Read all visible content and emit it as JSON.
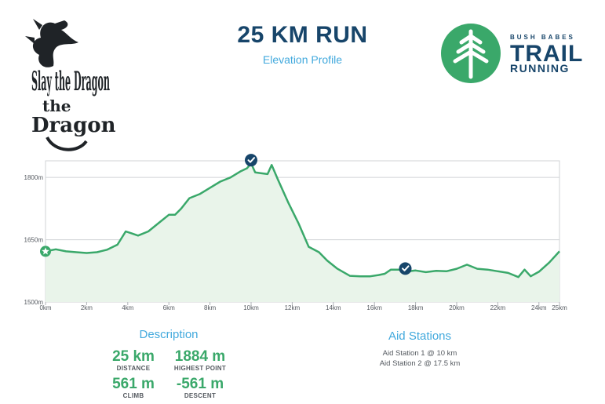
{
  "title": "25 KM RUN",
  "subtitle": "Elevation Profile",
  "logo_left": {
    "text": "Slay the Dragon",
    "icon": "dragon-icon"
  },
  "logo_right": {
    "small": "BUSH BABES",
    "big": "TRAIL",
    "bottom": "RUNNING",
    "icon": "pine-tree-icon"
  },
  "colors": {
    "line": "#3aa86a",
    "fill": "#e9f4ea",
    "marker": "#17456a",
    "accent": "#42a9dd",
    "navy": "#17456a"
  },
  "chart_data": {
    "type": "area",
    "title": "Elevation Profile",
    "xlabel": "",
    "ylabel": "",
    "x_unit": "km",
    "y_unit": "m",
    "xlim": [
      0,
      25
    ],
    "ylim": [
      1500,
      1840
    ],
    "x_ticks": [
      0,
      2,
      4,
      6,
      8,
      10,
      12,
      14,
      16,
      18,
      20,
      22,
      24,
      25
    ],
    "x_tick_labels": [
      "0km",
      "2km",
      "4km",
      "6km",
      "8km",
      "10km",
      "12km",
      "14km",
      "16km",
      "18km",
      "20km",
      "22km",
      "24km",
      "25km"
    ],
    "y_ticks": [
      1500,
      1650,
      1800
    ],
    "y_tick_labels": [
      "1500m",
      "1650m",
      "1800m"
    ],
    "x": [
      0,
      0.5,
      1,
      1.5,
      2,
      2.5,
      3,
      3.5,
      3.9,
      4.2,
      4.5,
      5,
      5.5,
      6,
      6.3,
      6.6,
      7,
      7.5,
      8,
      8.5,
      9,
      9.5,
      9.8,
      10,
      10.2,
      10.5,
      10.8,
      11,
      11.3,
      11.8,
      12.3,
      12.8,
      13.3,
      13.7,
      14.2,
      14.8,
      15.3,
      15.8,
      16.2,
      16.5,
      16.8,
      17.2,
      17.5,
      18,
      18.5,
      19,
      19.5,
      20,
      20.5,
      21,
      21.5,
      22,
      22.5,
      23,
      23.3,
      23.6,
      24,
      24.5,
      25
    ],
    "y": [
      1622,
      1627,
      1622,
      1620,
      1618,
      1620,
      1626,
      1638,
      1670,
      1665,
      1660,
      1670,
      1690,
      1710,
      1710,
      1725,
      1750,
      1760,
      1775,
      1790,
      1800,
      1815,
      1822,
      1834,
      1812,
      1810,
      1808,
      1830,
      1795,
      1740,
      1690,
      1633,
      1620,
      1600,
      1580,
      1563,
      1562,
      1562,
      1565,
      1568,
      1578,
      1578,
      1573,
      1576,
      1572,
      1575,
      1574,
      1580,
      1590,
      1580,
      1578,
      1574,
      1570,
      1560,
      1578,
      1562,
      1573,
      1595,
      1622
    ],
    "series": [
      {
        "name": "Elevation",
        "values": [
          1622,
          1627,
          1622,
          1620,
          1618,
          1620,
          1626,
          1638,
          1670,
          1665,
          1660,
          1670,
          1690,
          1710,
          1710,
          1725,
          1750,
          1760,
          1775,
          1790,
          1800,
          1815,
          1822,
          1834,
          1812,
          1810,
          1808,
          1830,
          1795,
          1740,
          1690,
          1633,
          1620,
          1600,
          1580,
          1563,
          1562,
          1562,
          1565,
          1568,
          1578,
          1578,
          1573,
          1576,
          1572,
          1575,
          1574,
          1580,
          1590,
          1580,
          1578,
          1574,
          1570,
          1560,
          1578,
          1562,
          1573,
          1595,
          1622
        ]
      }
    ],
    "markers": [
      {
        "kind": "start",
        "x": 0,
        "y": 1622
      },
      {
        "kind": "aid",
        "x": 10,
        "y": 1834
      },
      {
        "kind": "aid",
        "x": 17.5,
        "y": 1573
      }
    ]
  },
  "description": {
    "title": "Description",
    "stats": [
      {
        "value": "25 km",
        "label": "DISTANCE"
      },
      {
        "value": "1884 m",
        "label": "HIGHEST POINT"
      },
      {
        "value": "561 m",
        "label": "CLIMB"
      },
      {
        "value": "-561 m",
        "label": "DESCENT"
      }
    ]
  },
  "aid": {
    "title": "Aid Stations",
    "items": [
      "Aid Station 1 @ 10 km",
      "Aid Station 2 @ 17.5 km"
    ]
  }
}
